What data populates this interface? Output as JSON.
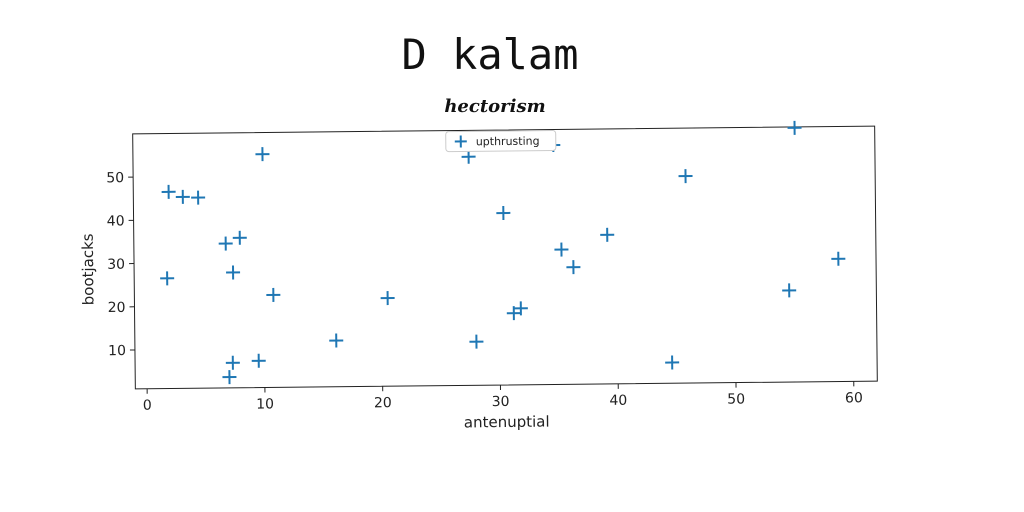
{
  "page": {
    "title": "D kalam"
  },
  "chart_data": {
    "type": "scatter",
    "title": "hectorism",
    "xlabel": "antenuptial",
    "ylabel": "bootjacks",
    "xlim": [
      -1,
      62
    ],
    "ylim": [
      1,
      60
    ],
    "x_ticks": [
      0,
      10,
      20,
      30,
      40,
      50,
      60
    ],
    "y_ticks": [
      10,
      20,
      30,
      40,
      50
    ],
    "grid": false,
    "legend_position": "top-center",
    "marker": "plus",
    "color": "#1f77b4",
    "series": [
      {
        "name": "upthrusting",
        "points": [
          [
            1.8,
            26.5
          ],
          [
            2.0,
            46.5
          ],
          [
            3.2,
            45.3
          ],
          [
            4.5,
            45.1
          ],
          [
            6.8,
            34.4
          ],
          [
            7.0,
            3.5
          ],
          [
            7.3,
            6.8
          ],
          [
            7.4,
            27.7
          ],
          [
            8.0,
            35.7
          ],
          [
            9.5,
            7.2
          ],
          [
            10.0,
            55.0
          ],
          [
            10.8,
            22.4
          ],
          [
            16.1,
            11.7
          ],
          [
            20.5,
            21.4
          ],
          [
            27.5,
            53.9
          ],
          [
            28.0,
            11.1
          ],
          [
            30.4,
            40.8
          ],
          [
            31.2,
            17.6
          ],
          [
            31.8,
            18.7
          ],
          [
            34.7,
            56.4
          ],
          [
            35.3,
            32.2
          ],
          [
            36.3,
            28.1
          ],
          [
            39.2,
            35.5
          ],
          [
            44.6,
            5.8
          ],
          [
            45.9,
            48.9
          ],
          [
            54.6,
            22.2
          ],
          [
            55.2,
            59.8
          ],
          [
            58.8,
            29.4
          ]
        ]
      }
    ]
  }
}
